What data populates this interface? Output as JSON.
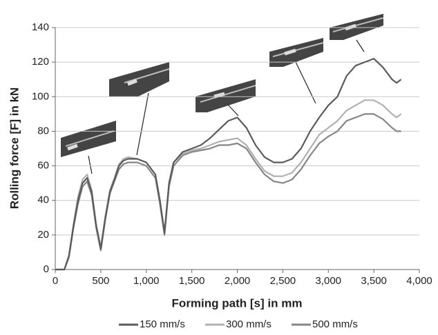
{
  "chart_data": {
    "type": "line",
    "x_label": "Forming path [s] in mm",
    "y_label": "Rolling force [F] in kN",
    "x": [
      0,
      100,
      150,
      200,
      250,
      300,
      350,
      400,
      450,
      500,
      550,
      600,
      650,
      700,
      750,
      800,
      900,
      1000,
      1100,
      1150,
      1200,
      1250,
      1300,
      1400,
      1500,
      1600,
      1700,
      1800,
      1900,
      2000,
      2100,
      2200,
      2300,
      2400,
      2500,
      2600,
      2700,
      2800,
      2900,
      3000,
      3100,
      3200,
      3300,
      3400,
      3500,
      3600,
      3700,
      3750,
      3800
    ],
    "series": [
      {
        "name": "150 mm/s",
        "color": "#5a5a5a",
        "values": [
          0,
          0,
          8,
          25,
          40,
          50,
          53,
          45,
          25,
          12,
          30,
          45,
          52,
          60,
          63,
          64,
          64,
          62,
          55,
          40,
          21,
          50,
          62,
          68,
          70,
          72,
          76,
          81,
          86,
          88,
          82,
          72,
          65,
          62,
          62,
          64,
          70,
          80,
          88,
          95,
          100,
          112,
          118,
          120,
          122,
          117,
          110,
          108,
          110
        ]
      },
      {
        "name": "300 mm/s",
        "color": "#b0b0b0",
        "values": [
          0,
          0,
          8,
          26,
          42,
          52,
          55,
          46,
          26,
          13,
          31,
          46,
          53,
          61,
          64,
          65,
          64,
          62,
          55,
          40,
          22,
          50,
          62,
          67,
          69,
          70,
          72,
          74,
          75,
          76,
          72,
          64,
          57,
          54,
          54,
          56,
          62,
          70,
          78,
          82,
          86,
          92,
          95,
          98,
          98,
          95,
          90,
          88,
          90
        ]
      },
      {
        "name": "500 mm/s",
        "color": "#858585",
        "values": [
          0,
          0,
          7,
          24,
          38,
          48,
          51,
          43,
          24,
          11,
          29,
          44,
          51,
          58,
          61,
          62,
          62,
          60,
          53,
          38,
          20,
          48,
          60,
          66,
          68,
          69,
          70,
          72,
          72,
          73,
          70,
          62,
          55,
          51,
          50,
          52,
          58,
          66,
          73,
          77,
          80,
          86,
          88,
          90,
          90,
          87,
          82,
          80,
          80
        ]
      }
    ],
    "xlim": [
      0,
      4000
    ],
    "xticks": [
      0,
      500,
      {
        "value": 1000,
        "label": "1,000"
      },
      {
        "value": 1500,
        "label": "1,500"
      },
      {
        "value": 2000,
        "label": "2,000"
      },
      {
        "value": 2500,
        "label": "2,500"
      },
      {
        "value": 3000,
        "label": "3,000"
      },
      {
        "value": 3500,
        "label": "3,500"
      },
      {
        "value": 4000,
        "label": "4,000"
      }
    ],
    "ylim": [
      0,
      140
    ],
    "yticks": [
      0,
      20,
      40,
      60,
      80,
      100,
      120,
      140
    ],
    "grid": true,
    "legend": "bottom"
  }
}
